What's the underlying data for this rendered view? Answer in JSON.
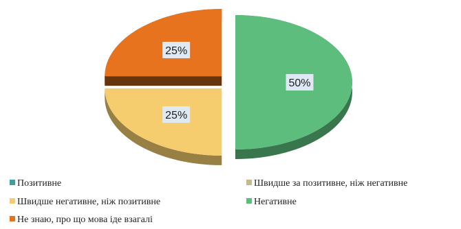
{
  "chart_data": {
    "type": "pie",
    "title": "",
    "labels": [
      "Позитивне",
      "Швидше за позитивне, ніж негативне",
      "Швидше негативне, ніж позитивне",
      "Негативне",
      "Не знаю, про що мова іде взагалі"
    ],
    "values": [
      0,
      0,
      25,
      50,
      25
    ],
    "data_labels": [
      "",
      "",
      "25%",
      "50%",
      "25%"
    ],
    "colors": [
      "#3f9ea0",
      "#c9b78c",
      "#f5cd6e",
      "#5cbd7c",
      "#e8731f"
    ],
    "legend_position": "bottom",
    "style": "3d-exploded"
  }
}
